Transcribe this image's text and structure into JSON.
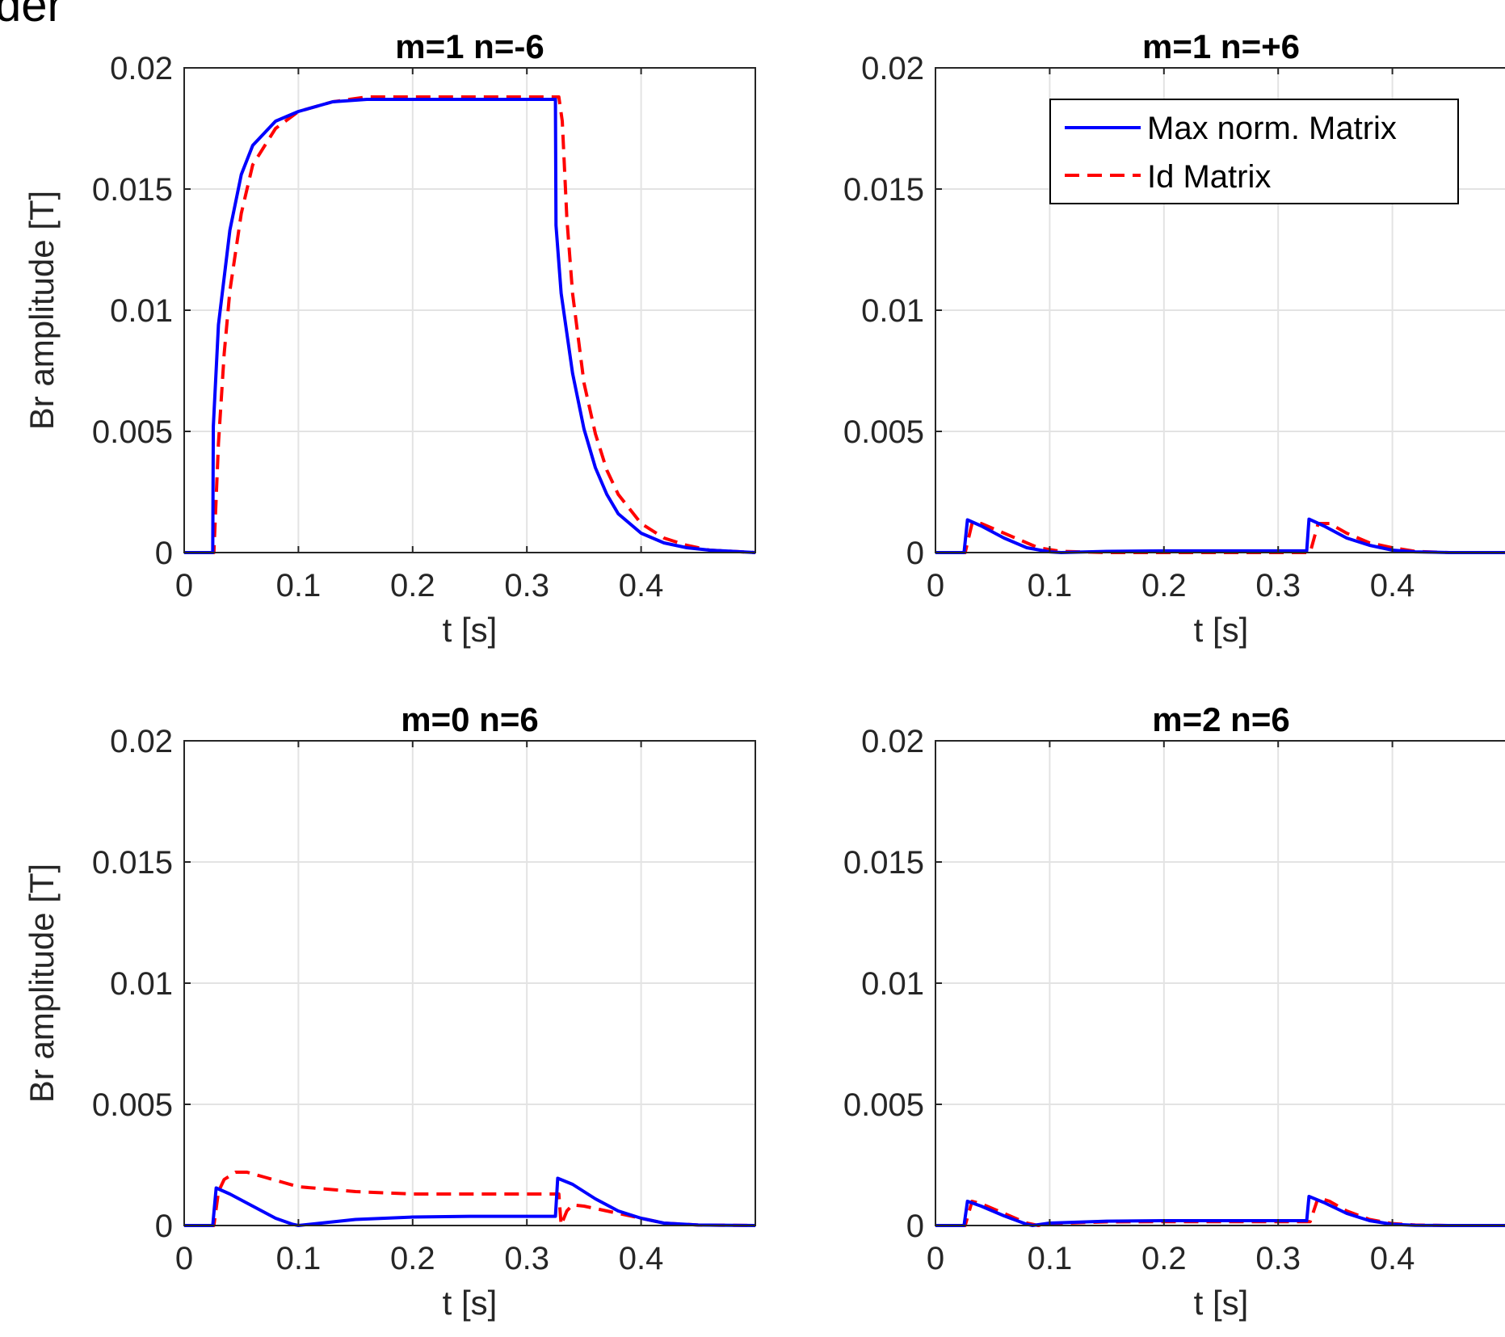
{
  "figure_text": "der",
  "colors": {
    "series_solid": "#0000ff",
    "series_dashed": "#ff0000",
    "grid": "#e3e3e3",
    "axes": "#262626"
  },
  "legend": {
    "entries": [
      "Max norm. Matrix",
      "Id Matrix"
    ],
    "placement": "top-right of panel 2"
  },
  "chart_data": [
    {
      "type": "line",
      "title": "m=1 n=-6",
      "xlabel": "t [s]",
      "ylabel": "Br amplitude [T]",
      "xlim": [
        0,
        0.5
      ],
      "ylim": [
        0,
        0.02
      ],
      "xticks": [
        0,
        0.1,
        0.2,
        0.3,
        0.4
      ],
      "xticklabels": [
        "0",
        "0.1",
        "0.2",
        "0.3",
        "0.4"
      ],
      "yticks": [
        0,
        0.005,
        0.01,
        0.015,
        0.02
      ],
      "yticklabels": [
        "0",
        "0.005",
        "0.01",
        "0.015",
        "0.02"
      ],
      "grid": true,
      "series": [
        {
          "name": "Max norm. Matrix",
          "style": "solid",
          "x": [
            0,
            0.025,
            0.0255,
            0.03,
            0.04,
            0.05,
            0.06,
            0.08,
            0.1,
            0.13,
            0.16,
            0.2,
            0.25,
            0.3,
            0.325,
            0.3255,
            0.33,
            0.34,
            0.35,
            0.36,
            0.37,
            0.38,
            0.4,
            0.42,
            0.44,
            0.46,
            0.5
          ],
          "y": [
            0,
            0,
            0.0052,
            0.0094,
            0.0133,
            0.0156,
            0.0168,
            0.0178,
            0.0182,
            0.0186,
            0.0187,
            0.0187,
            0.0187,
            0.0187,
            0.0187,
            0.0135,
            0.0107,
            0.0074,
            0.0051,
            0.0035,
            0.0024,
            0.0016,
            0.0008,
            0.0004,
            0.0002,
            0.0001,
            0
          ]
        },
        {
          "name": "Id Matrix",
          "style": "dashed",
          "x": [
            0,
            0.026,
            0.03,
            0.035,
            0.04,
            0.05,
            0.06,
            0.08,
            0.1,
            0.13,
            0.16,
            0.2,
            0.25,
            0.3,
            0.328,
            0.331,
            0.335,
            0.34,
            0.35,
            0.36,
            0.37,
            0.38,
            0.4,
            0.42,
            0.44,
            0.46,
            0.5
          ],
          "y": [
            0,
            0,
            0.0045,
            0.0082,
            0.0108,
            0.014,
            0.016,
            0.0175,
            0.0182,
            0.0186,
            0.0188,
            0.0188,
            0.0188,
            0.0188,
            0.0188,
            0.0178,
            0.0138,
            0.0107,
            0.007,
            0.0049,
            0.0034,
            0.0024,
            0.0012,
            0.0006,
            0.0003,
            0.0001,
            0
          ]
        }
      ]
    },
    {
      "type": "line",
      "title": "m=1 n=+6",
      "xlabel": "t [s]",
      "ylabel": "",
      "xlim": [
        0,
        0.5
      ],
      "ylim": [
        0,
        0.02
      ],
      "xticks": [
        0,
        0.1,
        0.2,
        0.3,
        0.4
      ],
      "xticklabels": [
        "0",
        "0.1",
        "0.2",
        "0.3",
        "0.4"
      ],
      "yticks": [
        0,
        0.005,
        0.01,
        0.015,
        0.02
      ],
      "yticklabels": [
        "0",
        "0.005",
        "0.01",
        "0.015",
        "0.02"
      ],
      "grid": true,
      "series": [
        {
          "name": "Max norm. Matrix",
          "style": "solid",
          "x": [
            0,
            0.025,
            0.028,
            0.04,
            0.06,
            0.08,
            0.1,
            0.11,
            0.15,
            0.2,
            0.25,
            0.3,
            0.325,
            0.327,
            0.34,
            0.36,
            0.38,
            0.4,
            0.42,
            0.45,
            0.5
          ],
          "y": [
            0,
            0,
            0.00135,
            0.0011,
            0.0006,
            0.0002,
            3e-05,
            0,
            5e-05,
            7e-05,
            7e-05,
            7e-05,
            7e-05,
            0.00138,
            0.0011,
            0.0006,
            0.0003,
            0.0001,
            3e-05,
            0,
            0
          ]
        },
        {
          "name": "Id Matrix",
          "style": "dashed",
          "x": [
            0,
            0.026,
            0.032,
            0.04,
            0.05,
            0.07,
            0.09,
            0.11,
            0.15,
            0.2,
            0.25,
            0.3,
            0.328,
            0.335,
            0.345,
            0.36,
            0.38,
            0.4,
            0.42,
            0.45,
            0.5
          ],
          "y": [
            0,
            0,
            0.0012,
            0.0012,
            0.001,
            0.0006,
            0.0002,
            5e-05,
            0,
            0,
            0,
            0,
            0,
            0.0012,
            0.0012,
            0.0008,
            0.0004,
            0.0002,
            5e-05,
            0,
            0
          ]
        }
      ]
    },
    {
      "type": "line",
      "title": "m=0 n=6",
      "xlabel": "t [s]",
      "ylabel": "Br amplitude [T]",
      "xlim": [
        0,
        0.5
      ],
      "ylim": [
        0,
        0.02
      ],
      "xticks": [
        0,
        0.1,
        0.2,
        0.3,
        0.4
      ],
      "xticklabels": [
        "0",
        "0.1",
        "0.2",
        "0.3",
        "0.4"
      ],
      "yticks": [
        0,
        0.005,
        0.01,
        0.015,
        0.02
      ],
      "yticklabels": [
        "0",
        "0.005",
        "0.01",
        "0.015",
        "0.02"
      ],
      "grid": true,
      "series": [
        {
          "name": "Max norm. Matrix",
          "style": "solid",
          "x": [
            0,
            0.025,
            0.028,
            0.04,
            0.06,
            0.08,
            0.095,
            0.1,
            0.11,
            0.15,
            0.2,
            0.25,
            0.3,
            0.325,
            0.327,
            0.34,
            0.36,
            0.38,
            0.4,
            0.42,
            0.45,
            0.5
          ],
          "y": [
            0,
            0,
            0.00155,
            0.0013,
            0.0008,
            0.0003,
            5e-05,
            0,
            5e-05,
            0.00025,
            0.00035,
            0.00038,
            0.00038,
            0.00038,
            0.00195,
            0.0017,
            0.0011,
            0.0006,
            0.0003,
            0.0001,
            2e-05,
            0
          ]
        },
        {
          "name": "Id Matrix",
          "style": "dashed",
          "x": [
            0,
            0.026,
            0.03,
            0.035,
            0.045,
            0.055,
            0.07,
            0.1,
            0.15,
            0.2,
            0.25,
            0.3,
            0.325,
            0.328,
            0.33,
            0.335,
            0.34,
            0.35,
            0.36,
            0.38,
            0.4,
            0.42,
            0.45,
            0.5
          ],
          "y": [
            0,
            0,
            0.0014,
            0.0019,
            0.0022,
            0.0022,
            0.002,
            0.0016,
            0.0014,
            0.0013,
            0.0013,
            0.0013,
            0.0013,
            0.0013,
            2e-05,
            0.0006,
            0.00085,
            0.0008,
            0.0007,
            0.0005,
            0.0003,
            0.0001,
            2e-05,
            0
          ]
        }
      ]
    },
    {
      "type": "line",
      "title": "m=2 n=6",
      "xlabel": "t [s]",
      "ylabel": "",
      "xlim": [
        0,
        0.5
      ],
      "ylim": [
        0,
        0.02
      ],
      "xticks": [
        0,
        0.1,
        0.2,
        0.3,
        0.4
      ],
      "xticklabels": [
        "0",
        "0.1",
        "0.2",
        "0.3",
        "0.4"
      ],
      "yticks": [
        0,
        0.005,
        0.01,
        0.015,
        0.02
      ],
      "yticklabels": [
        "0",
        "0.005",
        "0.01",
        "0.015",
        "0.02"
      ],
      "grid": true,
      "series": [
        {
          "name": "Max norm. Matrix",
          "style": "solid",
          "x": [
            0,
            0.025,
            0.028,
            0.04,
            0.06,
            0.08,
            0.085,
            0.1,
            0.15,
            0.2,
            0.25,
            0.3,
            0.325,
            0.327,
            0.34,
            0.36,
            0.38,
            0.4,
            0.42,
            0.45,
            0.5
          ],
          "y": [
            0,
            0,
            0.001,
            0.0008,
            0.0004,
            5e-05,
            0,
            0.0001,
            0.00018,
            0.0002,
            0.0002,
            0.0002,
            0.0002,
            0.0012,
            0.00095,
            0.0005,
            0.0002,
            5e-05,
            1e-05,
            0,
            0
          ]
        },
        {
          "name": "Id Matrix",
          "style": "dashed",
          "x": [
            0,
            0.026,
            0.032,
            0.04,
            0.06,
            0.08,
            0.09,
            0.1,
            0.15,
            0.2,
            0.25,
            0.3,
            0.328,
            0.335,
            0.345,
            0.36,
            0.38,
            0.4,
            0.42,
            0.45,
            0.5
          ],
          "y": [
            0,
            0,
            0.001,
            0.0009,
            0.0005,
            0.0001,
            0,
            8e-05,
            0.00015,
            0.00016,
            0.00016,
            0.00016,
            0.00016,
            0.00115,
            0.001,
            0.0006,
            0.00025,
            8e-05,
            2e-05,
            0,
            0
          ]
        }
      ]
    }
  ]
}
